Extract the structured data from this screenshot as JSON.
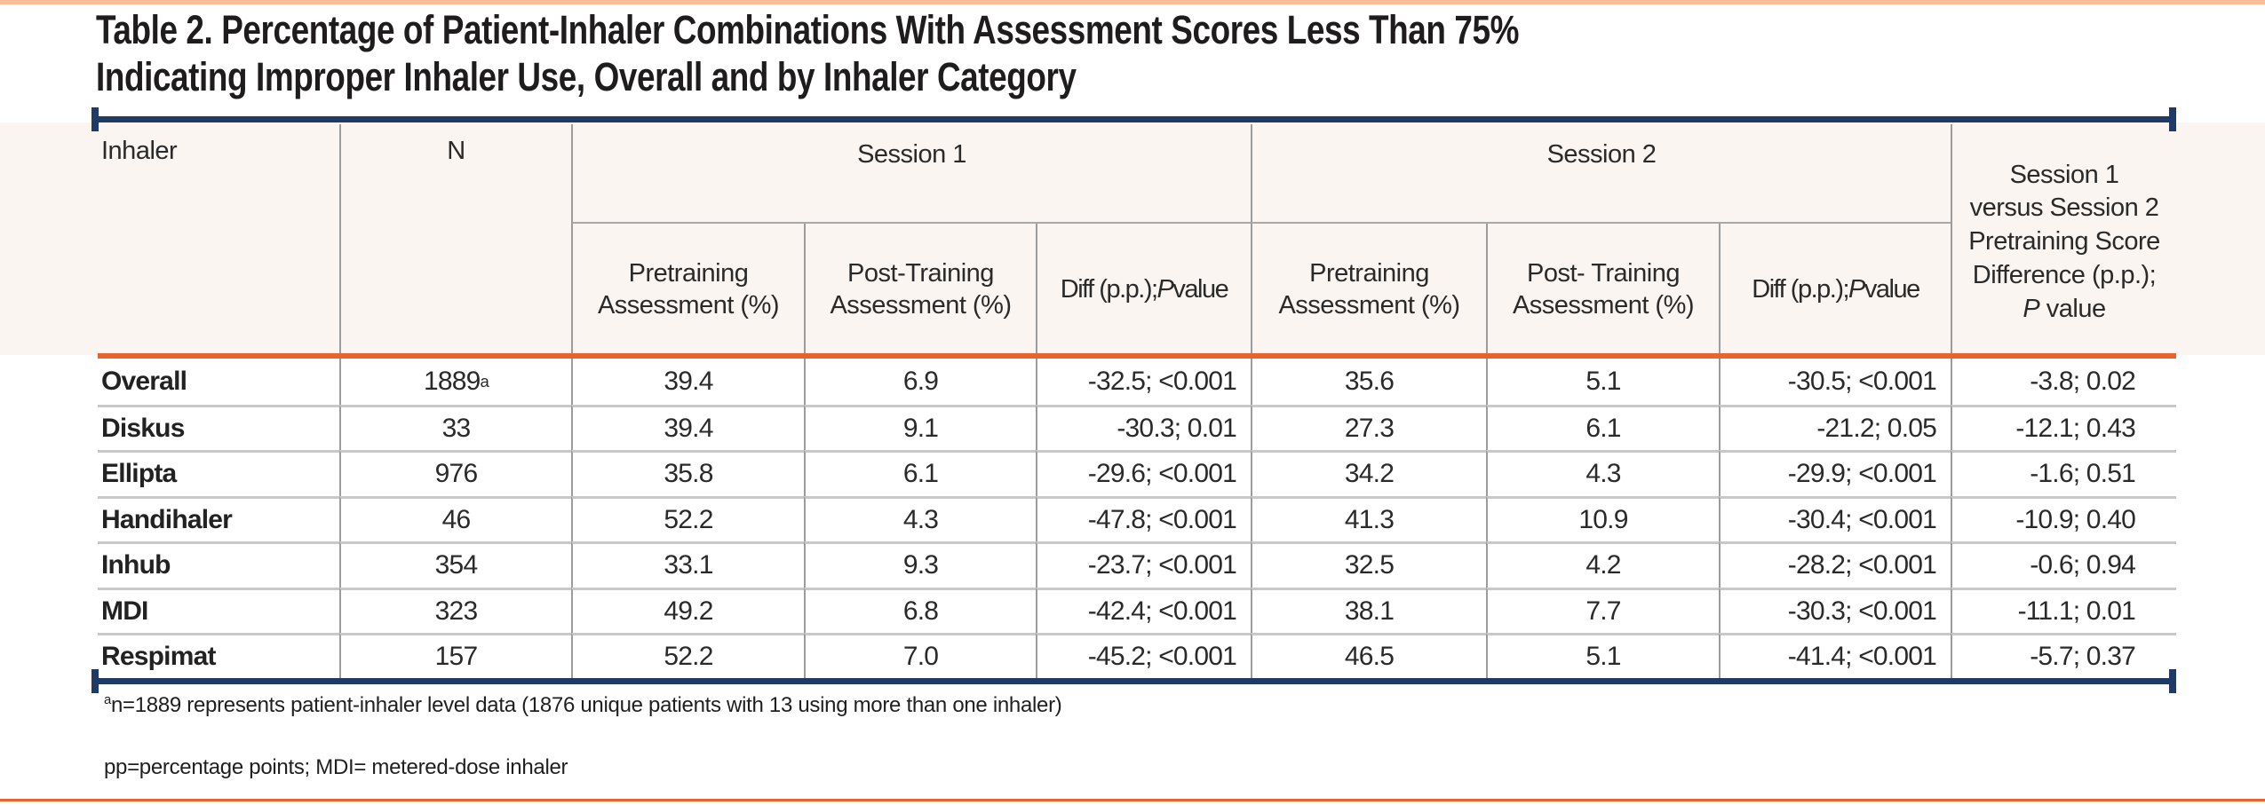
{
  "title": {
    "line1": "Table 2. Percentage of Patient-Inhaler Combinations With Assessment Scores Less Than 75%",
    "line2": "Indicating Improper Inhaler Use, Overall and by Inhaler Category"
  },
  "colors": {
    "accent_orange": "#e8632d",
    "accent_peach": "#f8bc96",
    "accent_navy": "#1f3a64",
    "header_band": "#faf5f1"
  },
  "table": {
    "header": {
      "inhaler": "Inhaler",
      "n": "N",
      "session1": "Session 1",
      "session2": "Session 2",
      "pretraining": "Pretraining Assessment (%)",
      "post_training_s1": "Post-Training Assessment (%)",
      "post_training_s2": "Post- Training Assessment (%)",
      "diff_pre": "Diff (p.p.); ",
      "diff_italic": "P",
      "diff_post": " value",
      "last_col_lines": "Session 1\nversus Session 2\nPretraining Score\nDifference (p.p.);",
      "last_col_p": "P",
      "last_col_rest": " value"
    },
    "rows": [
      {
        "label": "Overall",
        "n": "1889",
        "n_sup": "a",
        "s1_pre": "39.4",
        "s1_post": "6.9",
        "s1_diff": "-32.5; <0.001",
        "s2_pre": "35.6",
        "s2_post": "5.1",
        "s2_diff": "-30.5; <0.001",
        "s1_vs_s2": "-3.8; 0.02"
      },
      {
        "label": "Diskus",
        "n": "33",
        "n_sup": "",
        "s1_pre": "39.4",
        "s1_post": "9.1",
        "s1_diff": "-30.3; 0.01",
        "s2_pre": "27.3",
        "s2_post": "6.1",
        "s2_diff": "-21.2; 0.05",
        "s1_vs_s2": "-12.1; 0.43"
      },
      {
        "label": "Ellipta",
        "n": "976",
        "n_sup": "",
        "s1_pre": "35.8",
        "s1_post": "6.1",
        "s1_diff": "-29.6; <0.001",
        "s2_pre": "34.2",
        "s2_post": "4.3",
        "s2_diff": "-29.9; <0.001",
        "s1_vs_s2": "-1.6; 0.51"
      },
      {
        "label": "Handihaler",
        "n": "46",
        "n_sup": "",
        "s1_pre": "52.2",
        "s1_post": "4.3",
        "s1_diff": "-47.8; <0.001",
        "s2_pre": "41.3",
        "s2_post": "10.9",
        "s2_diff": "-30.4; <0.001",
        "s1_vs_s2": "-10.9; 0.40"
      },
      {
        "label": "Inhub",
        "n": "354",
        "n_sup": "",
        "s1_pre": "33.1",
        "s1_post": "9.3",
        "s1_diff": "-23.7; <0.001",
        "s2_pre": "32.5",
        "s2_post": "4.2",
        "s2_diff": "-28.2; <0.001",
        "s1_vs_s2": "-0.6; 0.94"
      },
      {
        "label": "MDI",
        "n": "323",
        "n_sup": "",
        "s1_pre": "49.2",
        "s1_post": "6.8",
        "s1_diff": "-42.4; <0.001",
        "s2_pre": "38.1",
        "s2_post": "7.7",
        "s2_diff": "-30.3; <0.001",
        "s1_vs_s2": "-11.1; 0.01"
      },
      {
        "label": "Respimat",
        "n": "157",
        "n_sup": "",
        "s1_pre": "52.2",
        "s1_post": "7.0",
        "s1_diff": "-45.2; <0.001",
        "s2_pre": "46.5",
        "s2_post": "5.1",
        "s2_diff": "-41.4; <0.001",
        "s1_vs_s2": "-5.7; 0.37"
      }
    ],
    "footnotes": {
      "note1_sup": "a",
      "note1": "n=1889 represents patient-inhaler level data (1876 unique patients with 13 using more than one inhaler)",
      "note2": "pp=percentage points; MDI= metered-dose inhaler"
    }
  }
}
